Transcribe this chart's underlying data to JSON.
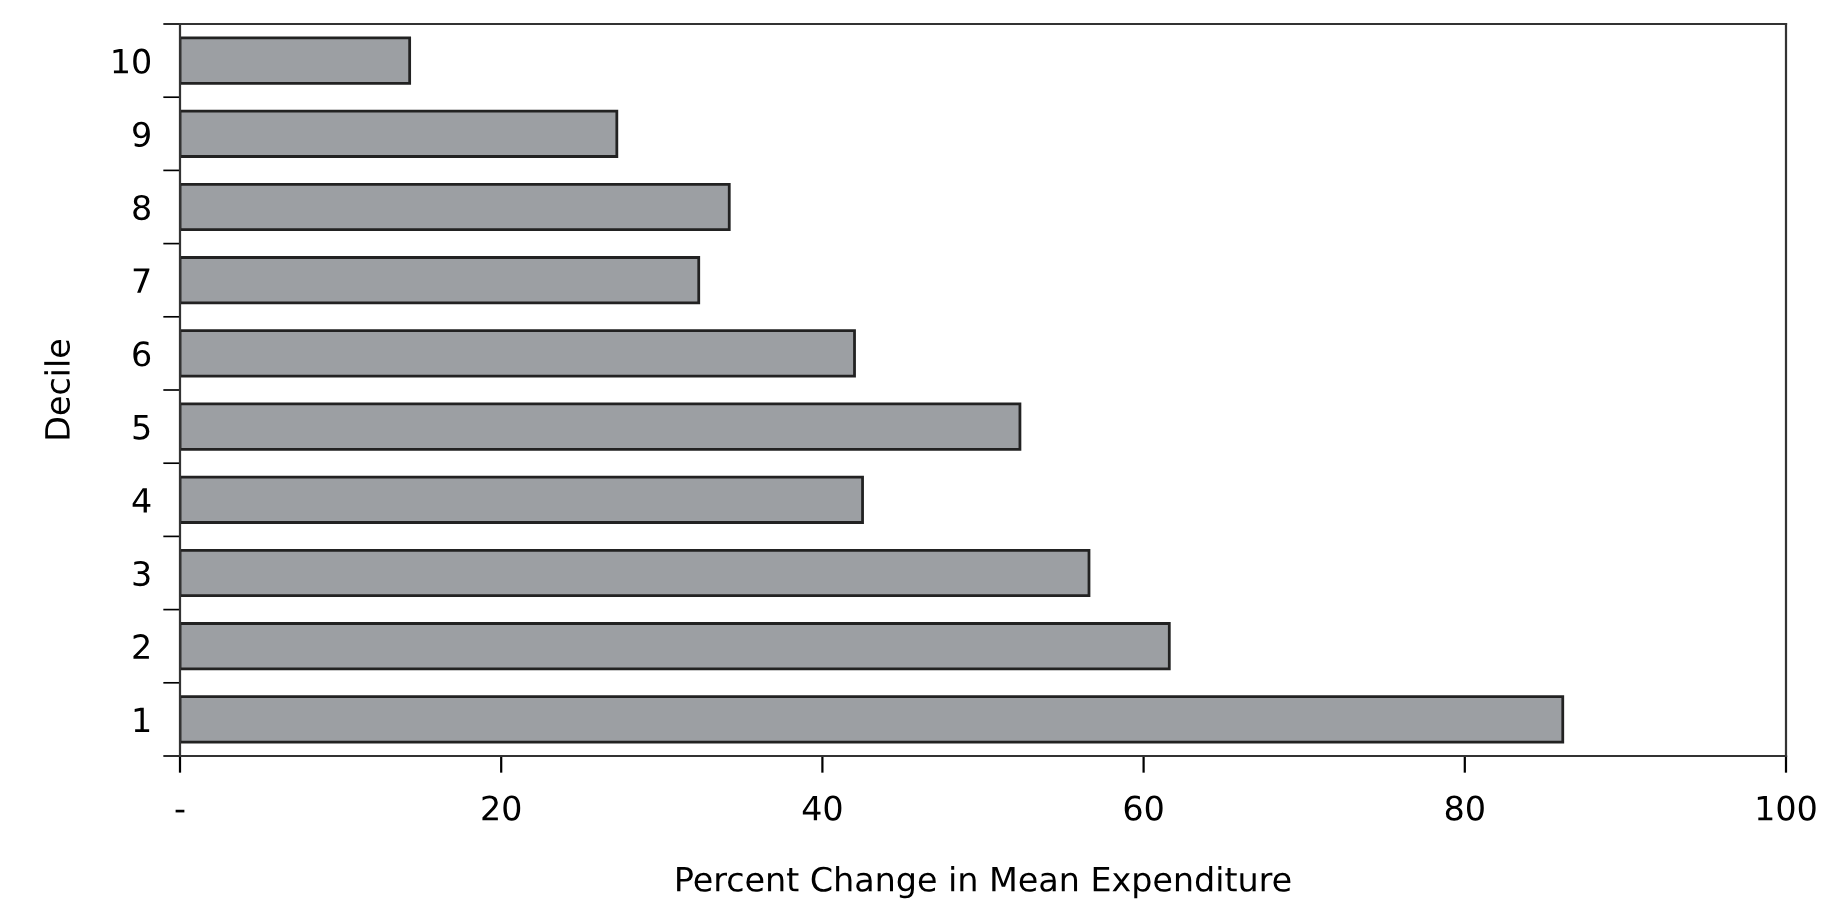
{
  "chart_data": {
    "type": "bar",
    "orientation": "horizontal",
    "xlabel": "Percent Change in Mean Expenditure",
    "ylabel": "Decile",
    "categories": [
      "10",
      "9",
      "8",
      "7",
      "6",
      "5",
      "4",
      "3",
      "2",
      "1"
    ],
    "values": [
      14.3,
      27.2,
      34.2,
      32.3,
      42.0,
      52.3,
      42.5,
      56.6,
      61.6,
      86.1
    ],
    "color": "#9c9fa3",
    "xlim": [
      0,
      100
    ],
    "xticks": [
      {
        "value": 0,
        "label": "-"
      },
      20,
      40,
      60,
      80,
      100
    ],
    "grid": false,
    "legend": false
  }
}
